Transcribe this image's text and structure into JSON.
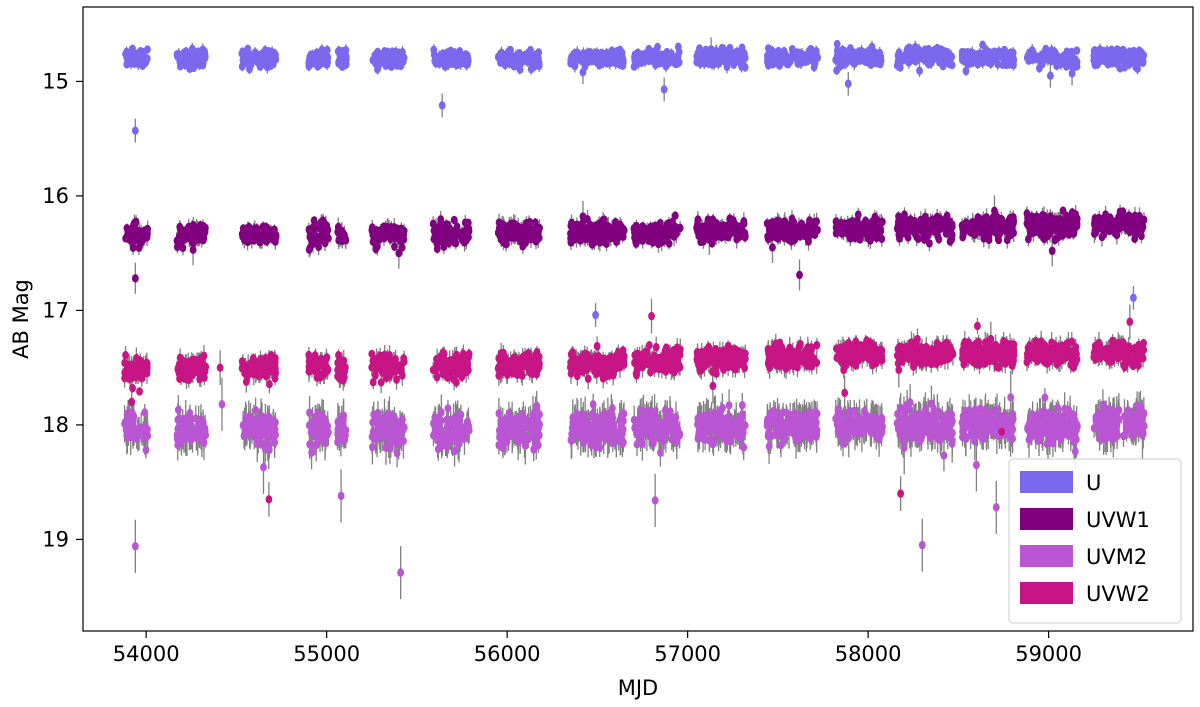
{
  "chart_data": {
    "type": "scatter",
    "title": "",
    "xlabel": "MJD",
    "ylabel": "AB Mag",
    "xlim": [
      53650,
      59800
    ],
    "ylim": [
      19.8,
      14.35
    ],
    "y_inverted": true,
    "xticks": [
      54000,
      55000,
      56000,
      57000,
      58000,
      59000
    ],
    "yticks": [
      15,
      16,
      17,
      18,
      19
    ],
    "grid": false,
    "legend": {
      "position": "lower-right"
    },
    "error_bar_color": "#808080",
    "observing_seasons": [
      [
        53880,
        54010
      ],
      [
        54170,
        54330
      ],
      [
        54530,
        54720
      ],
      [
        54900,
        55010
      ],
      [
        55060,
        55110
      ],
      [
        55250,
        55430
      ],
      [
        55590,
        55790
      ],
      [
        55950,
        56180
      ],
      [
        56350,
        56650
      ],
      [
        56700,
        56960
      ],
      [
        57050,
        57320
      ],
      [
        57440,
        57720
      ],
      [
        57820,
        58080
      ],
      [
        58160,
        58470
      ],
      [
        58520,
        58810
      ],
      [
        58880,
        59160
      ],
      [
        59250,
        59530
      ]
    ],
    "series": [
      {
        "name": "U",
        "color": "#7b68ee",
        "baseline": [
          [
            53900,
            14.8
          ],
          [
            56000,
            14.8
          ],
          [
            58000,
            14.79
          ],
          [
            59500,
            14.79
          ]
        ],
        "scatter": 0.035,
        "err": 0.04,
        "outliers": [
          [
            53940,
            15.43
          ],
          [
            55640,
            15.21
          ],
          [
            56490,
            17.04
          ],
          [
            56870,
            15.07
          ],
          [
            57130,
            14.72
          ],
          [
            57890,
            15.02
          ],
          [
            59010,
            14.95
          ],
          [
            59470,
            16.89
          ],
          [
            56420,
            14.92
          ],
          [
            59130,
            14.93
          ]
        ]
      },
      {
        "name": "UVW1",
        "color": "#800080",
        "baseline": [
          [
            53900,
            16.34
          ],
          [
            56000,
            16.33
          ],
          [
            57500,
            16.3
          ],
          [
            59500,
            16.25
          ]
        ],
        "scatter": 0.045,
        "err": 0.06,
        "outliers": [
          [
            53940,
            16.72
          ],
          [
            54260,
            16.47
          ],
          [
            55400,
            16.5
          ],
          [
            56420,
            16.18
          ],
          [
            57120,
            16.38
          ],
          [
            57470,
            16.45
          ],
          [
            57620,
            16.69
          ],
          [
            59020,
            16.48
          ],
          [
            58700,
            16.13
          ]
        ]
      },
      {
        "name": "UVM2",
        "color": "#ba55d3",
        "baseline": [
          [
            53900,
            18.05
          ],
          [
            56000,
            18.04
          ],
          [
            58000,
            18.0
          ],
          [
            59500,
            18.0
          ]
        ],
        "scatter": 0.07,
        "err": 0.12,
        "outliers": [
          [
            53940,
            19.06
          ],
          [
            55080,
            18.62
          ],
          [
            55410,
            19.29
          ],
          [
            54650,
            18.37
          ],
          [
            56820,
            18.66
          ],
          [
            58200,
            18.2
          ],
          [
            58300,
            19.05
          ],
          [
            58710,
            18.72
          ],
          [
            58790,
            17.76
          ],
          [
            59520,
            18.09
          ],
          [
            54420,
            17.82
          ],
          [
            58600,
            18.35
          ]
        ]
      },
      {
        "name": "UVW2",
        "color": "#c71585",
        "baseline": [
          [
            53900,
            17.52
          ],
          [
            56000,
            17.48
          ],
          [
            58000,
            17.38
          ],
          [
            59500,
            17.37
          ]
        ],
        "scatter": 0.05,
        "err": 0.07,
        "outliers": [
          [
            54680,
            18.65
          ],
          [
            56800,
            17.05
          ],
          [
            57140,
            17.66
          ],
          [
            57870,
            17.72
          ],
          [
            58170,
            17.52
          ],
          [
            58180,
            18.6
          ],
          [
            58740,
            18.06
          ],
          [
            58680,
            17.25
          ],
          [
            59450,
            17.1
          ],
          [
            54410,
            17.5
          ],
          [
            53920,
            17.8
          ]
        ]
      }
    ]
  }
}
